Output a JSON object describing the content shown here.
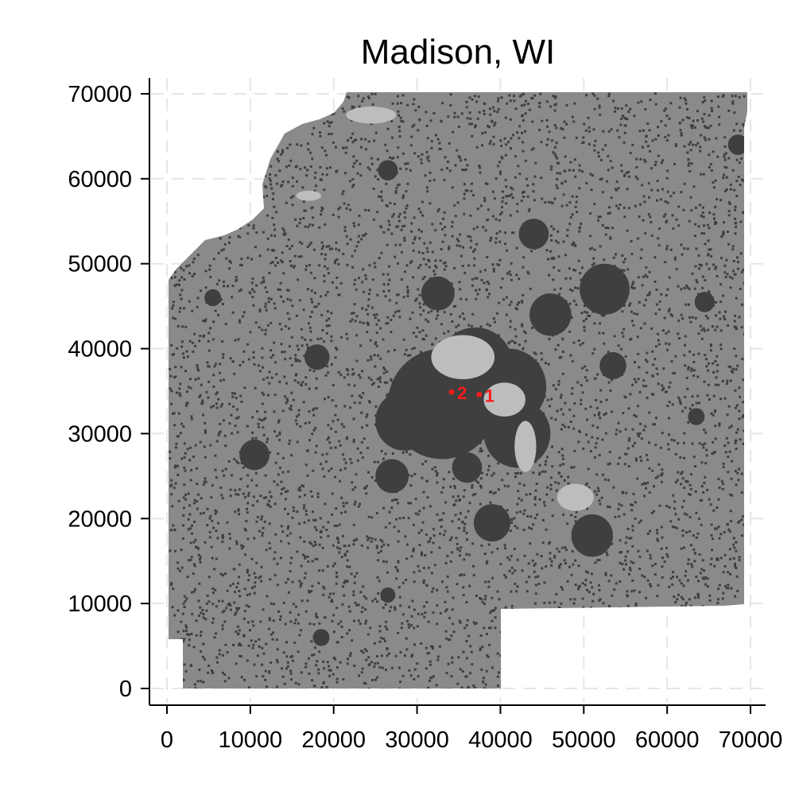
{
  "chart_data": {
    "type": "map",
    "title": "Madison, WI",
    "xlabel": "",
    "ylabel": "",
    "xlim": [
      -2000,
      72000
    ],
    "ylim": [
      -2000,
      72000
    ],
    "x_ticks": [
      0,
      10000,
      20000,
      30000,
      40000,
      50000,
      60000,
      70000
    ],
    "y_ticks": [
      0,
      10000,
      20000,
      30000,
      40000,
      50000,
      60000,
      70000
    ],
    "grid": true,
    "colors": {
      "region_fill": "#8a8a8a",
      "urban": "#3f3f3f",
      "water": "#bdbdbd",
      "marker": "#ff1a1a"
    },
    "markers": [
      {
        "label": "2",
        "x": 35200,
        "y": 34800
      },
      {
        "label": "1",
        "x": 38500,
        "y": 34500
      }
    ],
    "urban_areas": [
      {
        "x": 33000,
        "y": 33500,
        "r": 6500
      },
      {
        "x": 37000,
        "y": 38000,
        "r": 4500
      },
      {
        "x": 42000,
        "y": 30000,
        "r": 4000
      },
      {
        "x": 28500,
        "y": 31500,
        "r": 3500
      },
      {
        "x": 41000,
        "y": 35500,
        "r": 4500
      },
      {
        "x": 52500,
        "y": 47000,
        "r": 3000
      },
      {
        "x": 46000,
        "y": 44000,
        "r": 2500
      },
      {
        "x": 44000,
        "y": 53500,
        "r": 1800
      },
      {
        "x": 32500,
        "y": 46500,
        "r": 2000
      },
      {
        "x": 27000,
        "y": 25000,
        "r": 2000
      },
      {
        "x": 39000,
        "y": 19500,
        "r": 2200
      },
      {
        "x": 51000,
        "y": 18000,
        "r": 2500
      },
      {
        "x": 10500,
        "y": 27500,
        "r": 1800
      },
      {
        "x": 18000,
        "y": 39000,
        "r": 1500
      },
      {
        "x": 18500,
        "y": 6000,
        "r": 1000
      },
      {
        "x": 26500,
        "y": 11000,
        "r": 900
      },
      {
        "x": 26500,
        "y": 61000,
        "r": 1200
      },
      {
        "x": 5500,
        "y": 46000,
        "r": 1000
      },
      {
        "x": 64500,
        "y": 45500,
        "r": 1200
      },
      {
        "x": 63500,
        "y": 32000,
        "r": 1000
      },
      {
        "x": 68500,
        "y": 64000,
        "r": 1200
      },
      {
        "x": 53500,
        "y": 38000,
        "r": 1600
      },
      {
        "x": 36000,
        "y": 26000,
        "r": 1800
      }
    ],
    "water_bodies": [
      {
        "x": 35500,
        "y": 39000,
        "rx": 3800,
        "ry": 2600
      },
      {
        "x": 40500,
        "y": 34000,
        "rx": 2500,
        "ry": 2000
      },
      {
        "x": 43000,
        "y": 28500,
        "rx": 1300,
        "ry": 3000
      },
      {
        "x": 49000,
        "y": 22500,
        "rx": 2200,
        "ry": 1600
      },
      {
        "x": 24500,
        "y": 67500,
        "rx": 3000,
        "ry": 1000
      },
      {
        "x": 17000,
        "y": 58000,
        "rx": 1500,
        "ry": 600
      }
    ]
  }
}
